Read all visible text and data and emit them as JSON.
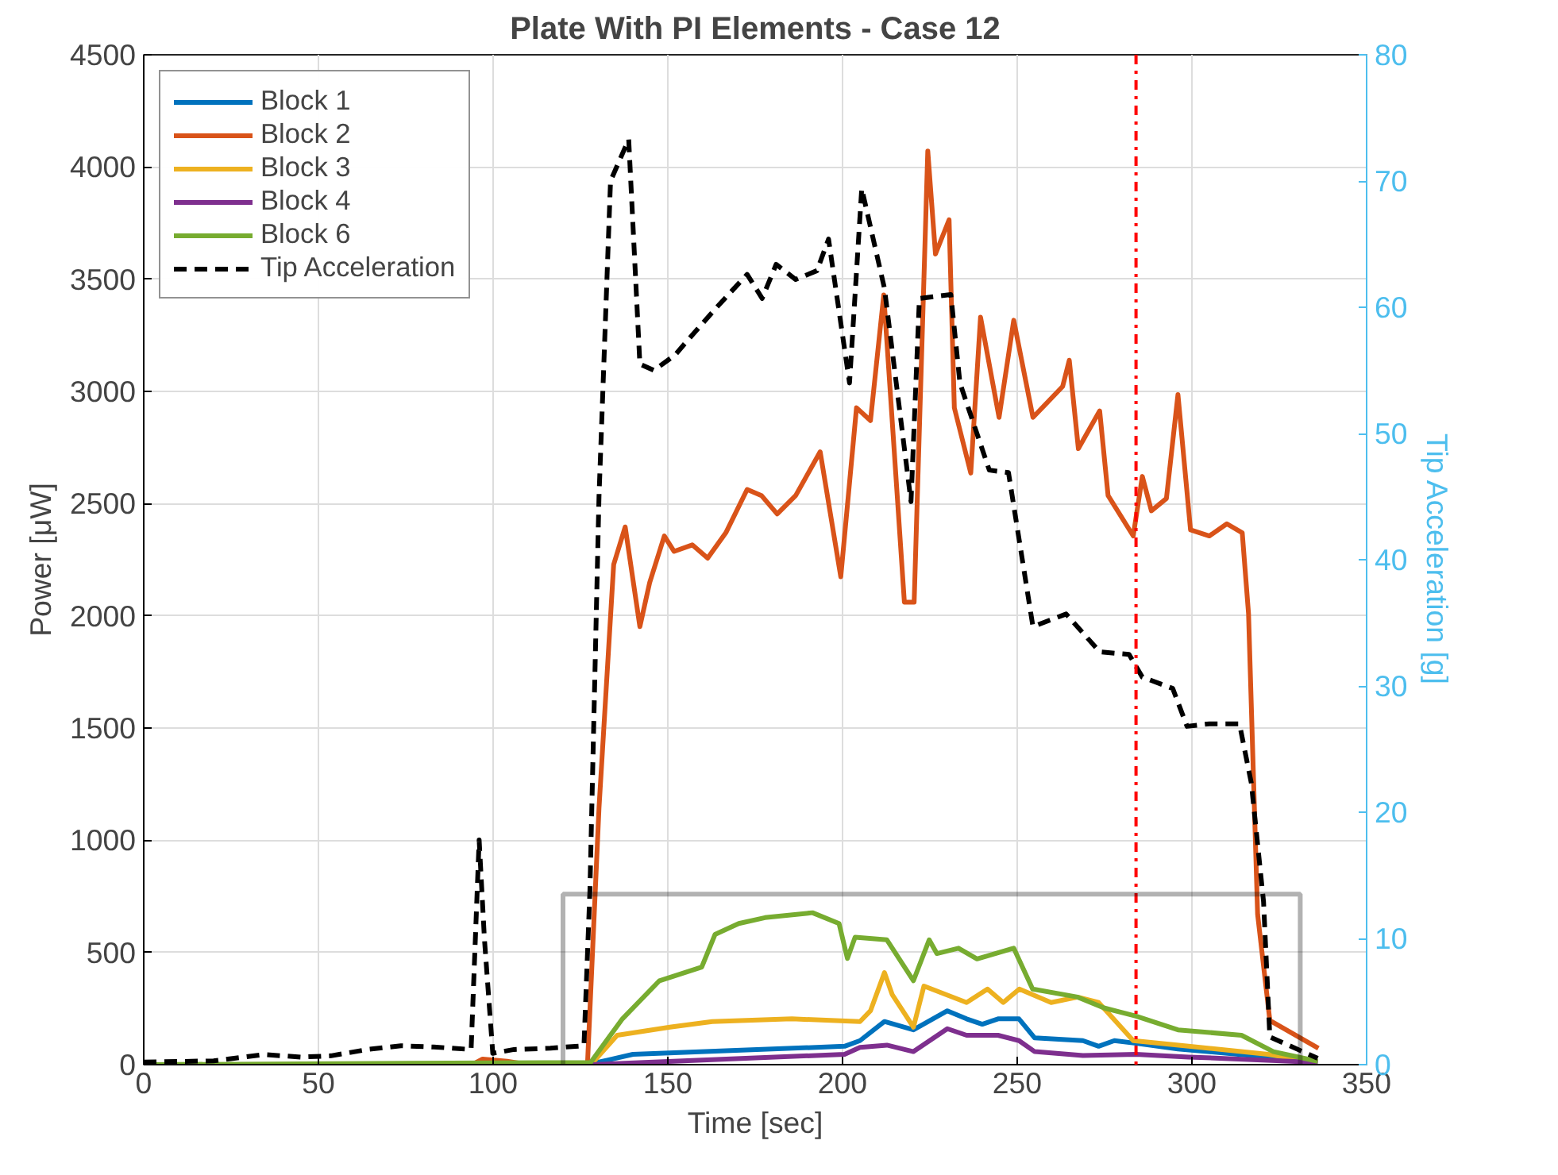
{
  "chart_data": {
    "type": "line",
    "title": "Plate With PI Elements - Case 12",
    "xlabel": "Time [sec]",
    "ylabel": "Power [μW]",
    "y2label": "Tip Acceleration [g]",
    "xlim": [
      0,
      350
    ],
    "xticks": [
      0,
      50,
      100,
      150,
      200,
      250,
      300,
      350
    ],
    "ylim": [
      0,
      4500
    ],
    "yticks": [
      0,
      500,
      1000,
      1500,
      2000,
      2500,
      3000,
      3500,
      4000,
      4500
    ],
    "y2lim": [
      0,
      80
    ],
    "y2ticks": [
      0,
      10,
      20,
      30,
      40,
      50,
      60,
      70,
      80
    ],
    "grid": true,
    "legend": "top left",
    "line_style": "solid",
    "series": [
      {
        "name": "Block 1",
        "color": "#0072bd",
        "x": [
          0,
          127,
          140,
          200.6,
          205,
          212,
          220.3,
          230,
          235.5,
          240,
          244.5,
          250.5,
          255,
          268.8,
          273.3,
          277.8,
          284,
          296,
          321.8,
          336
        ],
        "values": [
          0,
          0,
          46,
          82,
          107,
          192,
          155,
          240,
          204,
          180,
          204,
          204,
          119,
          107,
          82,
          107,
          95,
          70,
          34,
          10
        ]
      },
      {
        "name": "Block 2",
        "color": "#d95319",
        "x": [
          0,
          94,
          97,
          104,
          110,
          127,
          130.3,
          134.5,
          137.8,
          142,
          144.8,
          149,
          151.8,
          157,
          161.4,
          166.6,
          172.7,
          176.8,
          181.3,
          186.6,
          193.6,
          199.5,
          204,
          208,
          211.8,
          217.7,
          220.5,
          224.4,
          226.6,
          230.5,
          232,
          236.7,
          239.5,
          244.8,
          249,
          254.5,
          263,
          264.9,
          267.5,
          273.6,
          276,
          283.2,
          285.8,
          288.4,
          292.7,
          296,
          299.6,
          305,
          310,
          314.4,
          316.2,
          318.8,
          322.3,
          336.2
        ],
        "values": [
          0,
          0,
          25,
          15,
          0,
          0,
          1143,
          2228,
          2396,
          1952,
          2148,
          2356,
          2287,
          2316,
          2257,
          2370,
          2563,
          2536,
          2454,
          2536,
          2731,
          2174,
          2927,
          2870,
          3430,
          2061,
          2061,
          4071,
          3612,
          3765,
          2927,
          2636,
          3331,
          2884,
          3317,
          2884,
          3022,
          3139,
          2745,
          2913,
          2536,
          2356,
          2621,
          2468,
          2523,
          2986,
          2383,
          2356,
          2410,
          2370,
          2010,
          670,
          197,
          73
        ]
      },
      {
        "name": "Block 3",
        "color": "#edb120",
        "x": [
          0,
          128,
          135.5,
          150.6,
          162.7,
          185.5,
          205,
          208,
          212,
          214.2,
          220.3,
          223.3,
          235.5,
          241.5,
          246,
          250.6,
          259.7,
          267.3,
          273.3,
          283.2,
          299,
          321.8,
          336
        ],
        "values": [
          0,
          0,
          131,
          167,
          192,
          204,
          192,
          240,
          410,
          313,
          167,
          350,
          277,
          337,
          277,
          337,
          277,
          301,
          277,
          107,
          82,
          46,
          10
        ]
      },
      {
        "name": "Block 4",
        "color": "#7e2f8e",
        "x": [
          0,
          128,
          200.6,
          205,
          212.7,
          220.3,
          230,
          235.5,
          244.5,
          250.5,
          255,
          268.8,
          284,
          299,
          336
        ],
        "values": [
          0,
          0,
          46,
          77,
          87,
          58,
          160,
          131,
          131,
          107,
          58,
          41,
          46,
          34,
          10
        ]
      },
      {
        "name": "Block 6",
        "color": "#77ac30",
        "x": [
          0,
          127.9,
          137,
          147.6,
          159.7,
          163.5,
          170.3,
          177.8,
          191.4,
          199,
          201.4,
          203.6,
          212.7,
          220.3,
          224.8,
          227,
          233.2,
          238.5,
          249,
          254.4,
          267.3,
          274.8,
          284,
          296,
          314.2,
          323.3,
          336
        ],
        "values": [
          0,
          10,
          204,
          374,
          435,
          580,
          629,
          655,
          677,
          629,
          473,
          568,
          556,
          374,
          556,
          495,
          519,
          471,
          519,
          337,
          301,
          253,
          216,
          155,
          131,
          58,
          15
        ]
      },
      {
        "name": "Tip Acceleration",
        "color": "#000000",
        "axis": "y2",
        "line_style": "dashed",
        "x": [
          0,
          20,
          34.5,
          45,
          53.6,
          64,
          73.6,
          83,
          93.7,
          96,
          97.5,
          99.9,
          106,
          116.4,
          126,
          127.7,
          130.3,
          133.6,
          138.8,
          142,
          146,
          152,
          157,
          164,
          172.7,
          177,
          181,
          186.6,
          192.7,
          196,
          202,
          205.5,
          212,
          219.6,
          222,
          231,
          233.6,
          242,
          247.5,
          254.5,
          264,
          273.6,
          282,
          285.8,
          294.5,
          298.6,
          305,
          313.6,
          317,
          320.5,
          322.3,
          336
        ],
        "values": [
          0.2,
          0.3,
          0.8,
          0.6,
          0.7,
          1.2,
          1.5,
          1.4,
          1.2,
          17.8,
          10,
          0.9,
          1.2,
          1.3,
          1.5,
          13.8,
          45,
          70,
          73.3,
          55.5,
          55,
          56.2,
          57.8,
          60,
          62.6,
          60.7,
          63.4,
          62.2,
          62.9,
          65.4,
          54,
          69.4,
          61.5,
          44.6,
          60.7,
          61,
          54,
          47.1,
          46.9,
          34.7,
          35.7,
          32.7,
          32.5,
          30.7,
          29.8,
          26.8,
          27,
          27,
          22.3,
          12.9,
          2.2,
          0.5
        ]
      }
    ],
    "ref_lines": [
      {
        "axis": "x",
        "value": 284,
        "color": "#ff0000",
        "line_style": "dashdot"
      }
    ]
  }
}
